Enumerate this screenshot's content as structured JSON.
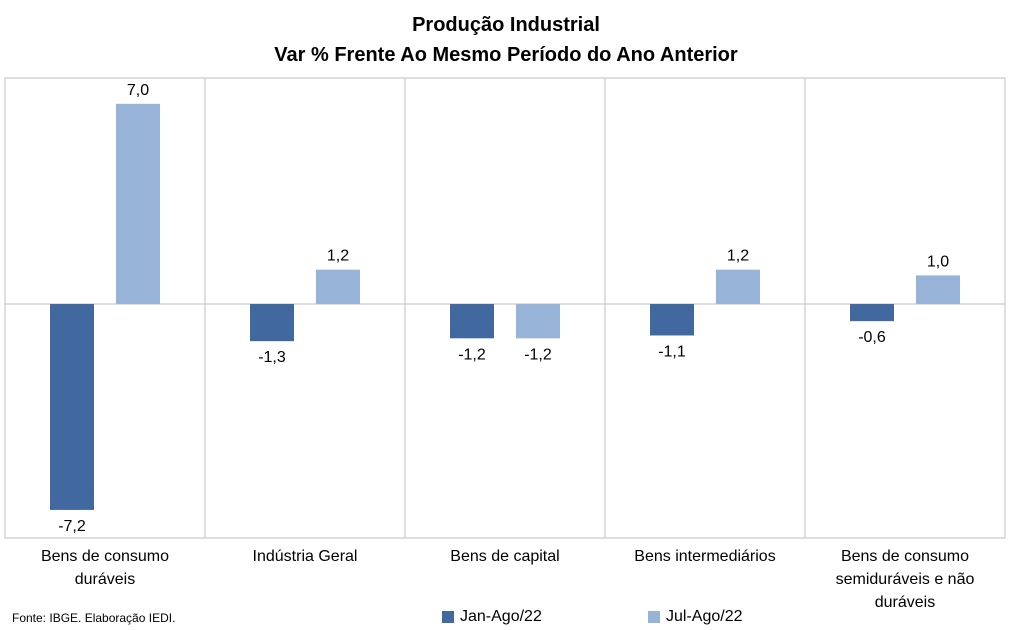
{
  "chart_data": {
    "type": "bar",
    "title": "Produção Industrial",
    "subtitle": "Var % Frente Ao Mesmo Período do Ano Anterior",
    "categories": [
      [
        "Bens de consumo",
        "duráveis"
      ],
      [
        "Indústria Geral"
      ],
      [
        "Bens de capital"
      ],
      [
        "Bens intermediários"
      ],
      [
        "Bens de consumo",
        "semiduráveis e não",
        "duráveis"
      ]
    ],
    "series": [
      {
        "name": "Jan-Ago/22",
        "color": "#41699F",
        "values": [
          -7.2,
          -1.3,
          -1.2,
          -1.1,
          -0.6
        ],
        "labels": [
          "-7,2",
          "-1,3",
          "-1,2",
          "-1,1",
          "-0,6"
        ]
      },
      {
        "name": "Jul-Ago/22",
        "color": "#97B3D7",
        "values": [
          7.0,
          1.2,
          -1.2,
          1.2,
          1.0
        ],
        "labels": [
          "7,0",
          "1,2",
          "-1,2",
          "1,2",
          "1,0"
        ]
      }
    ],
    "ylim": [
      -8,
      8
    ],
    "grid": "vertical-separators",
    "legend": "bottom"
  },
  "source": "Fonte: IBGE. Elaboração IEDI."
}
